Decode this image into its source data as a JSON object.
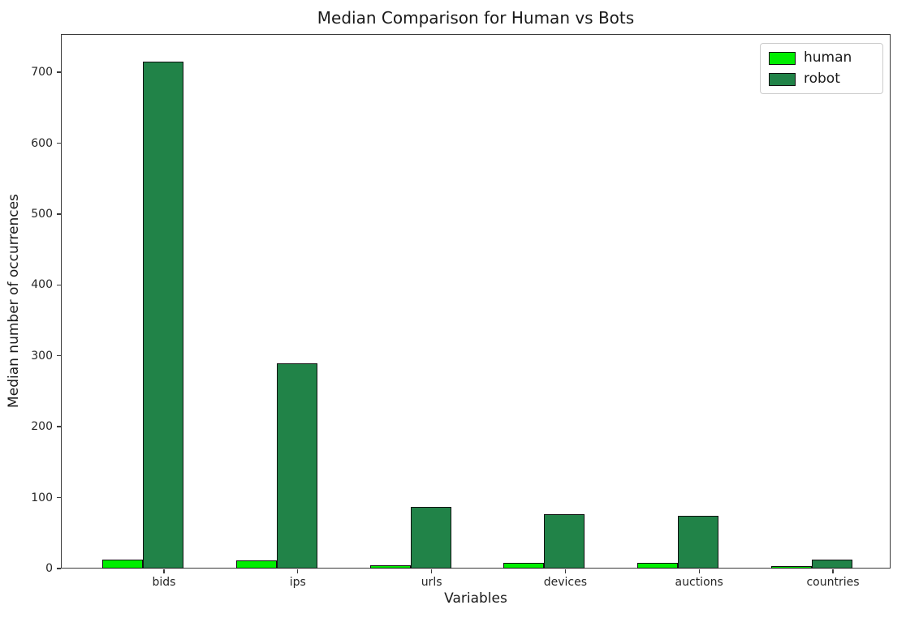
{
  "chart_data": {
    "type": "bar",
    "title": "Median Comparison for Human vs Bots",
    "xlabel": "Variables",
    "ylabel": "Median number of occurrences",
    "categories": [
      "bids",
      "ips",
      "urls",
      "devices",
      "auctions",
      "countries"
    ],
    "series": [
      {
        "name": "human",
        "color": "#00ee00",
        "values": [
          13,
          11,
          5,
          8,
          8,
          3
        ]
      },
      {
        "name": "robot",
        "color": "#218348",
        "values": [
          715,
          290,
          87,
          77,
          74,
          13
        ]
      }
    ],
    "ylim": [
      0,
      754
    ],
    "yticks": [
      0,
      100,
      200,
      300,
      400,
      500,
      600,
      700
    ],
    "grid": false,
    "legend_position": "upper right",
    "bar_edge_color": "#101010",
    "background_color": "#ffffff"
  }
}
